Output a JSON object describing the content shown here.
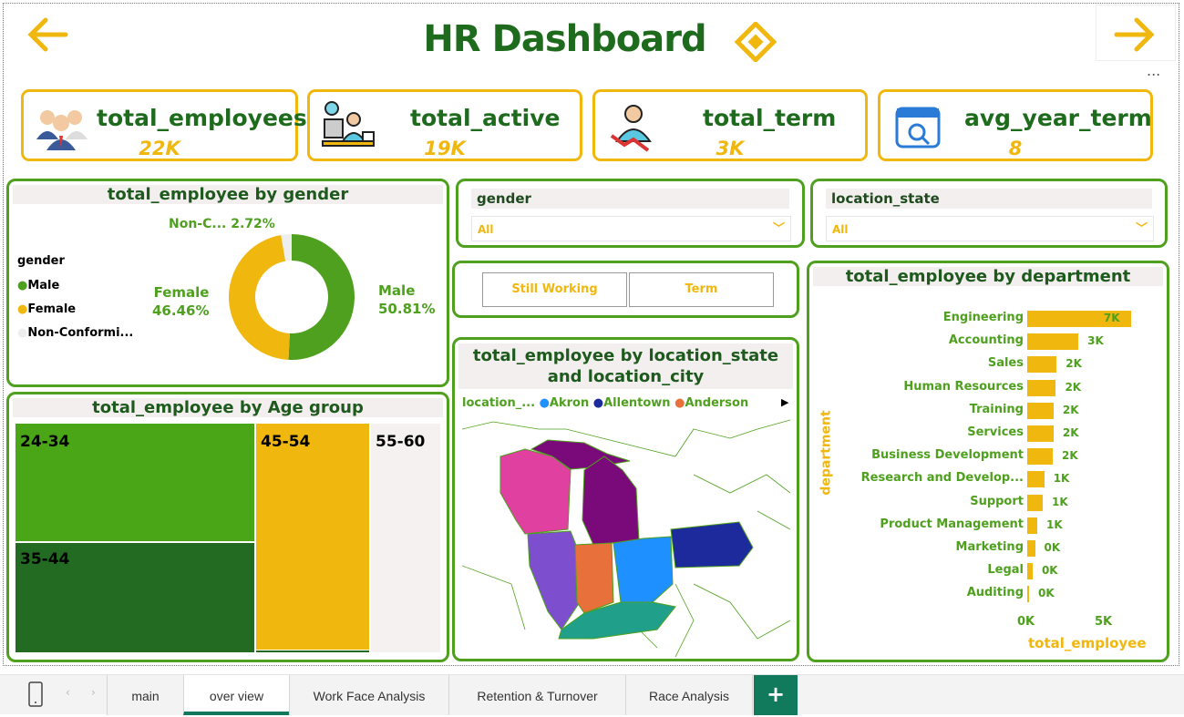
{
  "header": {
    "title": "HR Dashboard",
    "back_icon": "arrow-left-icon",
    "forward_icon": "arrow-right-icon",
    "more_label": "...",
    "colors": {
      "title": "#1e6b1e",
      "accent": "#f0b70f",
      "panel_border": "#4ea01e"
    }
  },
  "kpis": [
    {
      "label": "total_employees",
      "value": "22K",
      "icon": "people-group-icon"
    },
    {
      "label": "total_active",
      "value": "19K",
      "icon": "worker-at-desk-icon"
    },
    {
      "label": "total_term",
      "value": "3K",
      "icon": "person-decline-icon"
    },
    {
      "label": "avg_year_term",
      "value": "8",
      "icon": "calendar-search-icon"
    }
  ],
  "gender_chart": {
    "title": "total_employee by gender",
    "legend_title": "gender",
    "legend": [
      {
        "label": "Male",
        "color": "#4ea01e"
      },
      {
        "label": "Female",
        "color": "#f0b70f"
      },
      {
        "label": "Non-Conformi...",
        "color": "#eeeeee"
      }
    ],
    "slices": [
      {
        "label": "Male",
        "pct": "50.81%",
        "value": 50.81,
        "color": "#4ea01e"
      },
      {
        "label": "Female",
        "pct": "46.46%",
        "value": 46.46,
        "color": "#f0b70f"
      },
      {
        "label": "Non-C...",
        "pct": "2.72%",
        "value": 2.72,
        "color": "#eeeeee"
      }
    ]
  },
  "age_chart": {
    "title": "total_employee by Age group",
    "groups": [
      {
        "label": "24-34",
        "color": "#4aa517"
      },
      {
        "label": "35-44",
        "color": "#236b22"
      },
      {
        "label": "45-54",
        "color": "#f0b70f"
      },
      {
        "label": "55-60",
        "color": "#f5f1f1"
      }
    ]
  },
  "slicers": {
    "gender": {
      "label": "gender",
      "value": "All"
    },
    "location_state": {
      "label": "location_state",
      "value": "All"
    }
  },
  "buttons": {
    "still_working": "Still Working",
    "term": "Term"
  },
  "map": {
    "title": "total_employee by location_state and location_city",
    "legend_title": "location_...",
    "legend": [
      {
        "label": "Akron",
        "color": "#1e90ff"
      },
      {
        "label": "Allentown",
        "color": "#1d2a9c"
      },
      {
        "label": "Anderson",
        "color": "#e8703a"
      }
    ]
  },
  "chart_data": {
    "type": "bar",
    "orientation": "horizontal",
    "title": "total_employee by department",
    "xlabel": "total_employee",
    "ylabel": "department",
    "x_ticks": [
      "0K",
      "5K"
    ],
    "xlim": [
      0,
      7000
    ],
    "categories": [
      "Engineering",
      "Accounting",
      "Sales",
      "Human Resources",
      "Training",
      "Services",
      "Business Development",
      "Research and Develop...",
      "Support",
      "Product Management",
      "Marketing",
      "Legal",
      "Auditing"
    ],
    "values": [
      6700,
      3300,
      1900,
      1850,
      1700,
      1700,
      1650,
      1100,
      1000,
      650,
      500,
      350,
      100
    ],
    "data_labels": [
      "7K",
      "3K",
      "2K",
      "2K",
      "2K",
      "2K",
      "2K",
      "1K",
      "1K",
      "1K",
      "0K",
      "0K",
      "0K"
    ],
    "bar_color": "#f0b70f"
  },
  "tabs": {
    "items": [
      "main",
      "over view",
      "Work Face Analysis",
      "Retention & Turnover",
      "Race Analysis"
    ],
    "active": "over view",
    "add_label": "+"
  }
}
